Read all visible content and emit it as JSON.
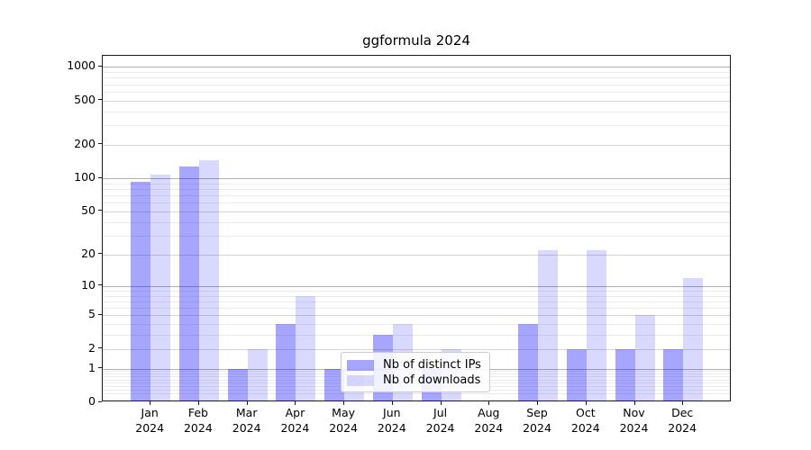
{
  "title": "ggformula 2024",
  "legend": {
    "items": [
      {
        "label": "Nb of distinct IPs",
        "color": "rgba(0,0,255,0.35)",
        "color_hex": "#a6a6ff"
      },
      {
        "label": "Nb of downloads",
        "color": "rgba(0,0,255,0.15)",
        "color_hex": "#d9d9ff"
      }
    ]
  },
  "chart_data": {
    "type": "bar",
    "title": "ggformula 2024",
    "categories": [
      "Jan 2024",
      "Feb 2024",
      "Mar 2024",
      "Apr 2024",
      "May 2024",
      "Jun 2024",
      "Jul 2024",
      "Aug 2024",
      "Sep 2024",
      "Oct 2024",
      "Nov 2024",
      "Dec 2024"
    ],
    "series": [
      {
        "name": "Nb of distinct IPs",
        "values": [
          93,
          127,
          1,
          4,
          1,
          3,
          1,
          0,
          4,
          2,
          2,
          2
        ]
      },
      {
        "name": "Nb of downloads",
        "values": [
          108,
          145,
          2,
          8,
          1,
          4,
          2,
          0,
          22,
          22,
          5,
          12
        ]
      }
    ],
    "xlabel": "",
    "ylabel": "",
    "yscale": "log1p (linear-at-zero log axis)",
    "yticks": [
      0,
      1,
      2,
      5,
      10,
      20,
      50,
      100,
      200,
      500,
      1000
    ],
    "ylim": [
      0,
      1270
    ],
    "grid": "horizontal, major gray lines at decades, faint minor log lines",
    "legend_position": "inside lower-center",
    "bar_colors": {
      "distinct_ips": "#a6a6ff",
      "downloads": "#d9d9ff"
    }
  }
}
